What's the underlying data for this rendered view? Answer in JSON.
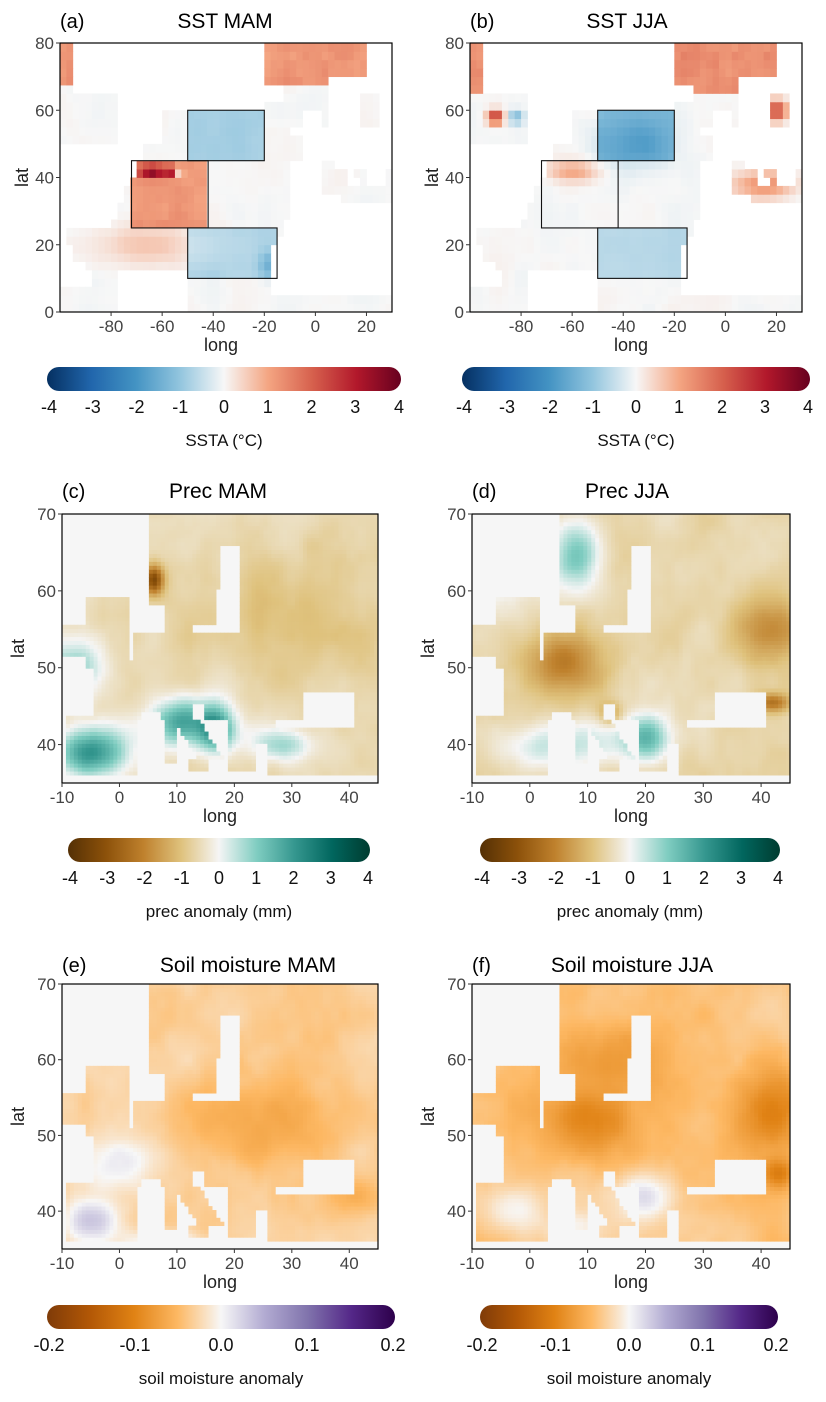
{
  "chart_data": [
    {
      "id": "a",
      "type": "heatmap",
      "panel_label": "(a)",
      "title": "SST MAM",
      "xlabel": "long",
      "ylabel": "lat",
      "xlim": [
        -100,
        30
      ],
      "ylim": [
        0,
        80
      ],
      "xticks": [
        -80,
        -60,
        -40,
        -20,
        0,
        20
      ],
      "yticks": [
        0,
        20,
        40,
        60,
        80
      ],
      "boxes": [
        {
          "lon": [
            -50,
            -20
          ],
          "lat": [
            45,
            60
          ]
        },
        {
          "lon": [
            -72,
            -42
          ],
          "lat": [
            25,
            45
          ]
        },
        {
          "lon": [
            -50,
            -15
          ],
          "lat": [
            10,
            25
          ]
        }
      ],
      "colorbar": {
        "label": "SSTA (°C)",
        "ticks": [
          -4,
          -3,
          -2,
          -1,
          0,
          1,
          2,
          3,
          4
        ],
        "range": [
          -4,
          4
        ],
        "colors": [
          "#053061",
          "#2166ac",
          "#4393c3",
          "#92c5de",
          "#f7f7f7",
          "#f4a582",
          "#d6604d",
          "#b2182b",
          "#67001f"
        ]
      },
      "notes": "Warm anomalies (~1-2 °C) in subtropical box 72W-42W, 25N-45N with hot spots >3 °C near 40N; cool anomalies (~-1 °C) in subpolar box 50W-20W, 45N-60N and tropical box 50W-15W, 10N-25N; warm band along 70N-80N."
    },
    {
      "id": "b",
      "type": "heatmap",
      "panel_label": "(b)",
      "title": "SST JJA",
      "xlabel": "long",
      "ylabel": "lat",
      "xlim": [
        -100,
        30
      ],
      "ylim": [
        0,
        80
      ],
      "xticks": [
        -80,
        -60,
        -40,
        -20,
        0,
        20
      ],
      "yticks": [
        0,
        20,
        40,
        60,
        80
      ],
      "boxes": [
        {
          "lon": [
            -50,
            -20
          ],
          "lat": [
            45,
            60
          ]
        },
        {
          "lon": [
            -72,
            -42
          ],
          "lat": [
            25,
            45
          ]
        },
        {
          "lon": [
            -50,
            -15
          ],
          "lat": [
            10,
            25
          ]
        }
      ],
      "colorbar": {
        "label": "SSTA (°C)",
        "ticks": [
          -4,
          -3,
          -2,
          -1,
          0,
          1,
          2,
          3,
          4
        ],
        "range": [
          -4,
          4
        ],
        "colors": [
          "#053061",
          "#2166ac",
          "#4393c3",
          "#92c5de",
          "#f7f7f7",
          "#f4a582",
          "#d6604d",
          "#b2182b",
          "#67001f"
        ]
      },
      "notes": "Cool anomaly (~-1 °C) in subpolar box; warm anomalies over Baltic, Mediterranean, Hudson Bay and along 70N-80N; near-zero tropics."
    },
    {
      "id": "c",
      "type": "heatmap",
      "panel_label": "(c)",
      "title": "Prec MAM",
      "xlabel": "long",
      "ylabel": "lat",
      "xlim": [
        -10,
        45
      ],
      "ylim": [
        35,
        70
      ],
      "xticks": [
        -10,
        0,
        10,
        20,
        30,
        40
      ],
      "yticks": [
        40,
        50,
        60,
        70
      ],
      "colorbar": {
        "label": "prec anomaly (mm)",
        "ticks": [
          -4,
          -3,
          -2,
          -1,
          0,
          1,
          2,
          3,
          4
        ],
        "range": [
          -4,
          4
        ],
        "colors": [
          "#543005",
          "#8c510a",
          "#bf812d",
          "#dfc27d",
          "#f5f5f5",
          "#80cdc1",
          "#35978f",
          "#01665e",
          "#003c30"
        ]
      },
      "notes": "Wet anomalies over Iberia, Italy, Balkan coast; dry over western Norway and northern/eastern Europe."
    },
    {
      "id": "d",
      "type": "heatmap",
      "panel_label": "(d)",
      "title": "Prec JJA",
      "xlabel": "long",
      "ylabel": "lat",
      "xlim": [
        -10,
        45
      ],
      "ylim": [
        35,
        70
      ],
      "xticks": [
        -10,
        0,
        10,
        20,
        30,
        40
      ],
      "yticks": [
        40,
        50,
        60,
        70
      ],
      "colorbar": {
        "label": "prec anomaly (mm)",
        "ticks": [
          -4,
          -3,
          -2,
          -1,
          0,
          1,
          2,
          3,
          4
        ],
        "range": [
          -4,
          4
        ],
        "colors": [
          "#543005",
          "#8c510a",
          "#bf812d",
          "#dfc27d",
          "#f5f5f5",
          "#80cdc1",
          "#35978f",
          "#01665e",
          "#003c30"
        ]
      },
      "notes": "Dry anomalies over central/western Europe and Russia; wet over Norway coast, Balkans and southern Mediterranean."
    },
    {
      "id": "e",
      "type": "heatmap",
      "panel_label": "(e)",
      "title": "Soil moisture MAM",
      "xlabel": "long",
      "ylabel": "lat",
      "xlim": [
        -10,
        45
      ],
      "ylim": [
        35,
        70
      ],
      "xticks": [
        -10,
        0,
        10,
        20,
        30,
        40
      ],
      "yticks": [
        40,
        50,
        60,
        70
      ],
      "colorbar": {
        "label": "soil moisture anomaly",
        "ticks": [
          "-0.2",
          "-0.1",
          "0.0",
          "0.1",
          "0.2"
        ],
        "range": [
          -0.2,
          0.2
        ],
        "colors": [
          "#7f3b08",
          "#b35806",
          "#e08214",
          "#fdb863",
          "#f7f7f7",
          "#b2abd2",
          "#8073ac",
          "#542788",
          "#2d004b"
        ]
      },
      "notes": "Mild drying over central and eastern Europe; wetter (purple) over Iberia and France."
    },
    {
      "id": "f",
      "type": "heatmap",
      "panel_label": "(f)",
      "title": "Soil moisture JJA",
      "xlabel": "long",
      "ylabel": "lat",
      "xlim": [
        -10,
        45
      ],
      "ylim": [
        35,
        70
      ],
      "xticks": [
        -10,
        0,
        10,
        20,
        30,
        40
      ],
      "yticks": [
        40,
        50,
        60,
        70
      ],
      "colorbar": {
        "label": "soil moisture anomaly",
        "ticks": [
          "-0.2",
          "-0.1",
          "0.0",
          "0.1",
          "0.2"
        ],
        "range": [
          -0.2,
          0.2
        ],
        "colors": [
          "#7f3b08",
          "#b35806",
          "#e08214",
          "#fdb863",
          "#f7f7f7",
          "#b2abd2",
          "#8073ac",
          "#542788",
          "#2d004b"
        ]
      },
      "notes": "Widespread drying over northern and central Europe, strongest over Germany and Russia; wetter over Balkans and Iberia."
    }
  ]
}
